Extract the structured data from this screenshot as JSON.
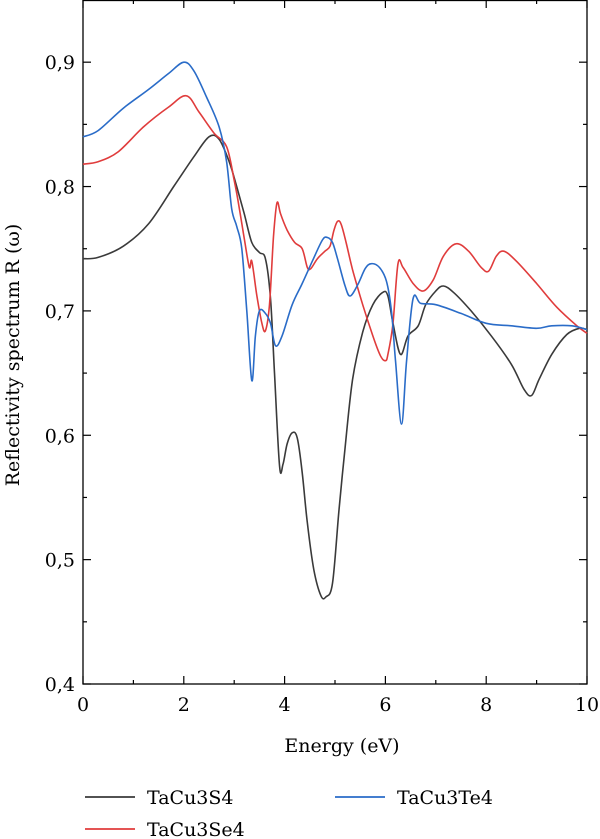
{
  "chart_data": {
    "type": "line",
    "title": "",
    "xlabel": "Energy (eV)",
    "ylabel": "Reflectivity spectrum R (ω)",
    "xlim": [
      0,
      10
    ],
    "ylim": [
      0.4,
      0.95
    ],
    "x_ticks": [
      0,
      2,
      4,
      6,
      8,
      10
    ],
    "x_tick_labels": [
      "0",
      "2",
      "4",
      "6",
      "8",
      "10"
    ],
    "y_ticks": [
      0.4,
      0.5,
      0.6,
      0.7,
      0.8,
      0.9
    ],
    "y_tick_labels": [
      "0,4",
      "0,5",
      "0,6",
      "0,7",
      "0,8",
      "0,9"
    ],
    "grid": false,
    "legend_position": "bottom",
    "series": [
      {
        "name": "TaCu3S4",
        "color": "#3a3a3a",
        "points": [
          [
            0,
            0.742
          ],
          [
            0.3,
            0.743
          ],
          [
            0.8,
            0.752
          ],
          [
            1.3,
            0.77
          ],
          [
            1.8,
            0.8
          ],
          [
            2.2,
            0.824
          ],
          [
            2.5,
            0.84
          ],
          [
            2.7,
            0.838
          ],
          [
            2.9,
            0.82
          ],
          [
            3.05,
            0.8
          ],
          [
            3.2,
            0.778
          ],
          [
            3.35,
            0.755
          ],
          [
            3.5,
            0.747
          ],
          [
            3.62,
            0.742
          ],
          [
            3.72,
            0.71
          ],
          [
            3.8,
            0.65
          ],
          [
            3.9,
            0.575
          ],
          [
            3.97,
            0.577
          ],
          [
            4.05,
            0.593
          ],
          [
            4.15,
            0.602
          ],
          [
            4.25,
            0.598
          ],
          [
            4.35,
            0.57
          ],
          [
            4.45,
            0.53
          ],
          [
            4.58,
            0.492
          ],
          [
            4.72,
            0.471
          ],
          [
            4.82,
            0.47
          ],
          [
            4.95,
            0.481
          ],
          [
            5.08,
            0.54
          ],
          [
            5.2,
            0.59
          ],
          [
            5.35,
            0.645
          ],
          [
            5.55,
            0.683
          ],
          [
            5.75,
            0.705
          ],
          [
            5.95,
            0.715
          ],
          [
            6.05,
            0.712
          ],
          [
            6.15,
            0.69
          ],
          [
            6.3,
            0.665
          ],
          [
            6.45,
            0.68
          ],
          [
            6.65,
            0.688
          ],
          [
            6.8,
            0.705
          ],
          [
            7.0,
            0.716
          ],
          [
            7.15,
            0.72
          ],
          [
            7.35,
            0.715
          ],
          [
            7.7,
            0.7
          ],
          [
            8.1,
            0.68
          ],
          [
            8.5,
            0.657
          ],
          [
            8.75,
            0.637
          ],
          [
            8.9,
            0.632
          ],
          [
            9.05,
            0.645
          ],
          [
            9.3,
            0.665
          ],
          [
            9.6,
            0.681
          ],
          [
            9.85,
            0.686
          ],
          [
            10.0,
            0.685
          ]
        ]
      },
      {
        "name": "TaCu3Se4",
        "color": "#e03c3c",
        "points": [
          [
            0,
            0.818
          ],
          [
            0.3,
            0.82
          ],
          [
            0.7,
            0.828
          ],
          [
            1.2,
            0.848
          ],
          [
            1.7,
            0.864
          ],
          [
            2.05,
            0.873
          ],
          [
            2.3,
            0.86
          ],
          [
            2.6,
            0.843
          ],
          [
            2.85,
            0.832
          ],
          [
            3.0,
            0.805
          ],
          [
            3.1,
            0.783
          ],
          [
            3.2,
            0.758
          ],
          [
            3.3,
            0.735
          ],
          [
            3.35,
            0.74
          ],
          [
            3.45,
            0.712
          ],
          [
            3.55,
            0.69
          ],
          [
            3.62,
            0.684
          ],
          [
            3.7,
            0.705
          ],
          [
            3.78,
            0.76
          ],
          [
            3.85,
            0.787
          ],
          [
            3.92,
            0.778
          ],
          [
            4.05,
            0.765
          ],
          [
            4.2,
            0.755
          ],
          [
            4.35,
            0.75
          ],
          [
            4.45,
            0.735
          ],
          [
            4.52,
            0.734
          ],
          [
            4.65,
            0.742
          ],
          [
            4.8,
            0.748
          ],
          [
            4.9,
            0.752
          ],
          [
            4.98,
            0.765
          ],
          [
            5.05,
            0.772
          ],
          [
            5.12,
            0.77
          ],
          [
            5.22,
            0.755
          ],
          [
            5.35,
            0.733
          ],
          [
            5.55,
            0.705
          ],
          [
            5.75,
            0.68
          ],
          [
            5.9,
            0.664
          ],
          [
            6.0,
            0.66
          ],
          [
            6.05,
            0.665
          ],
          [
            6.15,
            0.69
          ],
          [
            6.25,
            0.738
          ],
          [
            6.35,
            0.735
          ],
          [
            6.55,
            0.722
          ],
          [
            6.75,
            0.716
          ],
          [
            6.95,
            0.725
          ],
          [
            7.15,
            0.744
          ],
          [
            7.4,
            0.754
          ],
          [
            7.65,
            0.748
          ],
          [
            7.9,
            0.735
          ],
          [
            8.05,
            0.732
          ],
          [
            8.2,
            0.744
          ],
          [
            8.35,
            0.748
          ],
          [
            8.6,
            0.74
          ],
          [
            9.0,
            0.722
          ],
          [
            9.4,
            0.703
          ],
          [
            9.8,
            0.688
          ],
          [
            10.0,
            0.682
          ]
        ]
      },
      {
        "name": "TaCu3Te4",
        "color": "#2a6cc8",
        "points": [
          [
            0,
            0.84
          ],
          [
            0.3,
            0.845
          ],
          [
            0.8,
            0.863
          ],
          [
            1.3,
            0.878
          ],
          [
            1.7,
            0.891
          ],
          [
            2.0,
            0.9
          ],
          [
            2.2,
            0.893
          ],
          [
            2.45,
            0.872
          ],
          [
            2.7,
            0.848
          ],
          [
            2.85,
            0.82
          ],
          [
            2.95,
            0.782
          ],
          [
            3.05,
            0.768
          ],
          [
            3.15,
            0.75
          ],
          [
            3.25,
            0.7
          ],
          [
            3.35,
            0.644
          ],
          [
            3.42,
            0.68
          ],
          [
            3.5,
            0.7
          ],
          [
            3.62,
            0.698
          ],
          [
            3.72,
            0.69
          ],
          [
            3.82,
            0.672
          ],
          [
            3.95,
            0.68
          ],
          [
            4.15,
            0.705
          ],
          [
            4.35,
            0.722
          ],
          [
            4.55,
            0.74
          ],
          [
            4.75,
            0.757
          ],
          [
            4.85,
            0.759
          ],
          [
            4.95,
            0.755
          ],
          [
            5.05,
            0.742
          ],
          [
            5.2,
            0.72
          ],
          [
            5.3,
            0.712
          ],
          [
            5.45,
            0.721
          ],
          [
            5.6,
            0.734
          ],
          [
            5.72,
            0.738
          ],
          [
            5.88,
            0.735
          ],
          [
            6.02,
            0.724
          ],
          [
            6.12,
            0.7
          ],
          [
            6.2,
            0.66
          ],
          [
            6.32,
            0.609
          ],
          [
            6.42,
            0.66
          ],
          [
            6.55,
            0.71
          ],
          [
            6.7,
            0.706
          ],
          [
            7.0,
            0.705
          ],
          [
            7.5,
            0.698
          ],
          [
            8.0,
            0.69
          ],
          [
            8.5,
            0.688
          ],
          [
            9.0,
            0.686
          ],
          [
            9.3,
            0.688
          ],
          [
            9.7,
            0.688
          ],
          [
            10.0,
            0.685
          ]
        ]
      }
    ]
  }
}
